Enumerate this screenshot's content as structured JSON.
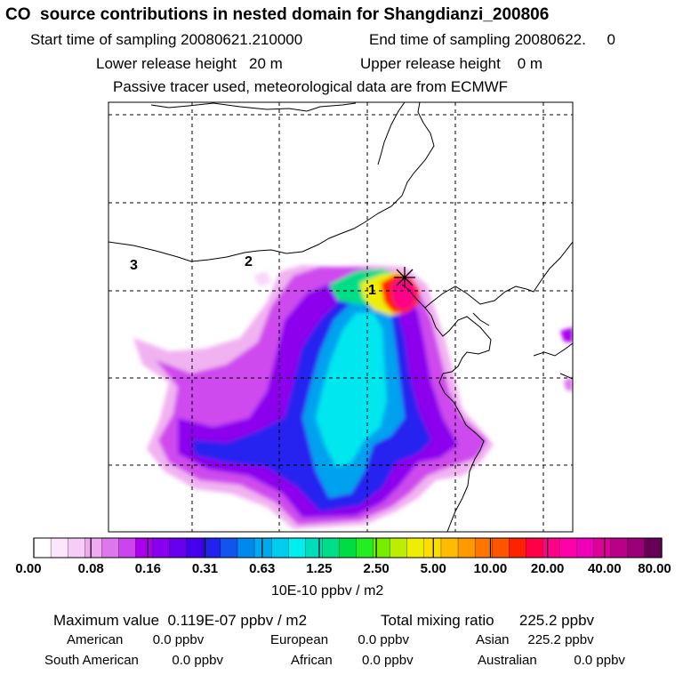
{
  "header": {
    "title": "CO  source contributions in nested domain for Shangdianzi_200806",
    "start_time": "Start time of sampling 20080621.210000",
    "end_time": "End time of sampling 20080622.     0",
    "lower_release": "Lower release height   20 m",
    "upper_release": "Upper release height    0 m",
    "tracer_note": "Passive tracer used, meteorological data are from ECMWF"
  },
  "map": {
    "labels": [
      "3",
      "2",
      "1"
    ],
    "receptor_marker": "x-star",
    "colors": {
      "frame": "#000000",
      "grid": "#000000",
      "coast": "#000000"
    }
  },
  "chart_data": {
    "type": "heatmap",
    "title": "CO  source contributions in nested domain for Shangdianzi_200806",
    "colorbar": {
      "label": "10E-10 ppbv / m2",
      "tick_labels": [
        "0.00",
        "0.08",
        "0.16",
        "0.31",
        "0.63",
        "1.25",
        "2.50",
        "5.00",
        "10.00",
        "20.00",
        "40.00",
        "80.00"
      ],
      "levels": [
        0.0,
        0.08,
        0.16,
        0.31,
        0.63,
        1.25,
        2.5,
        5.0,
        10.0,
        20.0,
        40.0,
        80.0
      ],
      "colors": [
        "#ffffff",
        "#fbe6fb",
        "#f7ccf7",
        "#f0aaf0",
        "#dd77ee",
        "#cc44ee",
        "#aa00ee",
        "#8800ee",
        "#6600ee",
        "#4400ee",
        "#2222ee",
        "#1155ee",
        "#0088ee",
        "#00aaee",
        "#00ccee",
        "#00eeee",
        "#00ddbb",
        "#00dd88",
        "#00dd44",
        "#22ee22",
        "#77ee00",
        "#bbee00",
        "#eeee00",
        "#ffdd00",
        "#ffbb00",
        "#ff9900",
        "#ff7700",
        "#ff5500",
        "#ff2200",
        "#ff0044",
        "#ff0088",
        "#ff00aa",
        "#ee00bb",
        "#dd0099",
        "#bb0088",
        "#990077",
        "#660055"
      ]
    },
    "max_value": "0.119E-07",
    "max_unit": "ppbv / m2",
    "total_mixing_ratio": "225.2",
    "mixing_unit": "ppbv"
  },
  "footer": {
    "max_text": "Maximum value  0.119E-07 ppbv / m2",
    "total_text": "Total mixing ratio      225.2 ppbv",
    "american": "American        0.0 ppbv",
    "european": "European        0.0 ppbv",
    "asian": "Asian     225.2 ppbv",
    "south_american": "South American         0.0 ppbv",
    "african": "African        0.0 ppbv",
    "australian": "Australian          0.0 ppbv"
  }
}
